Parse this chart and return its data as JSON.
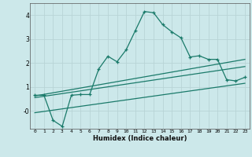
{
  "xlabel": "Humidex (Indice chaleur)",
  "background_color": "#cce8ea",
  "grid_color": "#b8d4d6",
  "line_color": "#1a7a6a",
  "xlim": [
    -0.5,
    23.5
  ],
  "ylim": [
    -0.75,
    4.5
  ],
  "x_ticks": [
    0,
    1,
    2,
    3,
    4,
    5,
    6,
    7,
    8,
    9,
    10,
    11,
    12,
    13,
    14,
    15,
    16,
    17,
    18,
    19,
    20,
    21,
    22,
    23
  ],
  "y_ticks": [
    0,
    1,
    2,
    3,
    4
  ],
  "y_tick_labels": [
    "-0",
    "1",
    "2",
    "3",
    "4"
  ],
  "curve1_x": [
    0,
    1,
    2,
    3,
    4,
    5,
    6,
    7,
    8,
    9,
    10,
    11,
    12,
    13,
    14,
    15,
    16,
    17,
    18,
    19,
    20,
    21,
    22,
    23
  ],
  "curve1_y": [
    0.65,
    0.65,
    -0.4,
    -0.65,
    0.65,
    0.68,
    0.68,
    1.75,
    2.28,
    2.05,
    2.55,
    3.35,
    4.15,
    4.1,
    3.6,
    3.3,
    3.05,
    2.25,
    2.3,
    2.15,
    2.15,
    1.3,
    1.25,
    1.4
  ],
  "line1_x": [
    0,
    23
  ],
  "line1_y": [
    0.62,
    2.15
  ],
  "line2_x": [
    0,
    23
  ],
  "line2_y": [
    0.55,
    1.85
  ],
  "line3_x": [
    0,
    23
  ],
  "line3_y": [
    -0.08,
    1.15
  ]
}
